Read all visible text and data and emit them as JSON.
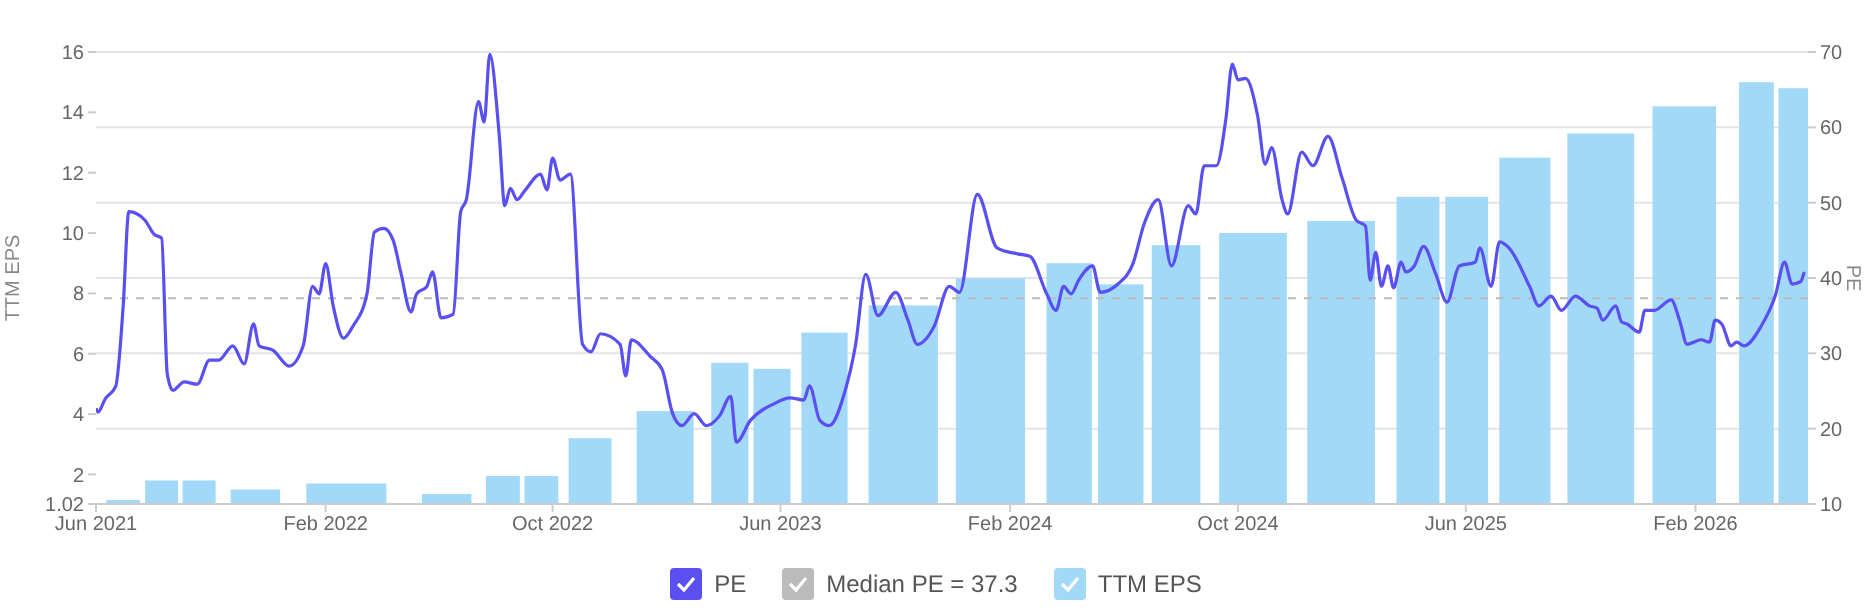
{
  "chart_data": {
    "type": "bar",
    "ylabel": "TTM EPS",
    "y2label": "PE",
    "legend": "bottom",
    "grid": "y",
    "marker": "none",
    "xlim": [
      "2021-06-01",
      "2026-06-01"
    ],
    "xticks": [
      {
        "value": "2021-06-01",
        "label": "Jun 2021"
      },
      {
        "value": "2022-02-01",
        "label": "Feb 2022"
      },
      {
        "value": "2022-10-01",
        "label": "Oct 2022"
      },
      {
        "value": "2023-06-01",
        "label": "Jun 2023"
      },
      {
        "value": "2024-02-01",
        "label": "Feb 2024"
      },
      {
        "value": "2024-10-01",
        "label": "Oct 2024"
      },
      {
        "value": "2025-06-01",
        "label": "Jun 2025"
      },
      {
        "value": "2026-02-01",
        "label": "Feb 2026"
      }
    ],
    "ylim": [
      1.02,
      16
    ],
    "yticks": [
      1.02,
      2,
      4,
      6,
      8,
      10,
      12,
      14,
      16
    ],
    "y2lim": [
      10,
      70
    ],
    "y2ticks": [
      10,
      20,
      30,
      40,
      50,
      60,
      70
    ],
    "ref_lines": [
      {
        "axis": "y2",
        "value": 37.3,
        "label": "Median PE = 37.3",
        "color": "#bbbbbb",
        "line_style": "dashed"
      }
    ],
    "x": [
      "2021-06-30",
      "2021-08-10",
      "2021-09-19",
      "2021-11-18",
      "2022-02-23",
      "2022-06-10",
      "2022-08-09",
      "2022-09-19",
      "2022-11-10",
      "2023-01-29",
      "2023-04-08",
      "2023-05-23",
      "2023-07-18",
      "2023-10-10",
      "2024-01-11",
      "2024-04-04",
      "2024-05-29",
      "2024-07-27",
      "2024-10-17",
      "2025-01-19",
      "2025-04-11",
      "2025-06-02",
      "2025-08-03",
      "2025-10-23",
      "2026-01-20",
      "2026-04-07",
      "2026-05-19"
    ],
    "series": [
      {
        "name": "PE",
        "type": "line",
        "axis": "y2",
        "color": "#5a4ff0",
        "line_style": "solid",
        "x": [
          "2021-06-01",
          "2021-06-03",
          "2021-06-11",
          "2021-06-22",
          "2021-06-30",
          "2021-07-06",
          "2021-07-23",
          "2021-08-02",
          "2021-08-10",
          "2021-08-16",
          "2021-08-22",
          "2021-09-03",
          "2021-09-17",
          "2021-09-30",
          "2021-10-10",
          "2021-10-25",
          "2021-11-06",
          "2021-11-16",
          "2021-11-22",
          "2021-12-07",
          "2021-12-24",
          "2022-01-08",
          "2022-01-18",
          "2022-01-25",
          "2022-02-01",
          "2022-02-09",
          "2022-02-20",
          "2022-03-02",
          "2022-03-17",
          "2022-03-25",
          "2022-04-04",
          "2022-04-14",
          "2022-04-22",
          "2022-05-03",
          "2022-05-09",
          "2022-05-20",
          "2022-05-26",
          "2022-06-04",
          "2022-06-17",
          "2022-06-25",
          "2022-07-01",
          "2022-07-14",
          "2022-07-20",
          "2022-07-26",
          "2022-08-05",
          "2022-08-11",
          "2022-08-17",
          "2022-08-24",
          "2022-09-02",
          "2022-09-18",
          "2022-09-25",
          "2022-10-01",
          "2022-10-09",
          "2022-10-20",
          "2022-11-02",
          "2022-11-11",
          "2022-11-21",
          "2022-12-12",
          "2022-12-18",
          "2022-12-24",
          "2023-01-13",
          "2023-01-26",
          "2023-02-06",
          "2023-02-16",
          "2023-03-01",
          "2023-03-14",
          "2023-03-28",
          "2023-04-09",
          "2023-04-15",
          "2023-04-30",
          "2023-05-25",
          "2023-06-11",
          "2023-06-26",
          "2023-07-02",
          "2023-07-13",
          "2023-07-23",
          "2023-08-08",
          "2023-08-20",
          "2023-08-31",
          "2023-09-13",
          "2023-10-02",
          "2023-10-15",
          "2023-10-25",
          "2023-11-12",
          "2023-11-28",
          "2023-12-09",
          "2023-12-28",
          "2024-01-18",
          "2024-02-09",
          "2024-02-22",
          "2024-03-11",
          "2024-03-21",
          "2024-03-29",
          "2024-04-06",
          "2024-04-14",
          "2024-04-29",
          "2024-05-07",
          "2024-05-26",
          "2024-06-11",
          "2024-06-23",
          "2024-07-08",
          "2024-07-22",
          "2024-08-09",
          "2024-08-17",
          "2024-08-26",
          "2024-09-08",
          "2024-09-18",
          "2024-09-25",
          "2024-10-01",
          "2024-10-09",
          "2024-10-22",
          "2024-10-30",
          "2024-11-06",
          "2024-11-17",
          "2024-11-23",
          "2024-12-08",
          "2024-12-20",
          "2025-01-05",
          "2025-01-20",
          "2025-02-04",
          "2025-02-14",
          "2025-02-19",
          "2025-02-25",
          "2025-03-03",
          "2025-03-10",
          "2025-03-16",
          "2025-03-24",
          "2025-03-29",
          "2025-04-07",
          "2025-04-17",
          "2025-04-30",
          "2025-05-12",
          "2025-05-25",
          "2025-06-11",
          "2025-06-16",
          "2025-06-28",
          "2025-07-07",
          "2025-07-17",
          "2025-08-08",
          "2025-08-18",
          "2025-08-31",
          "2025-09-11",
          "2025-09-26",
          "2025-10-11",
          "2025-10-19",
          "2025-10-25",
          "2025-11-08",
          "2025-11-14",
          "2025-11-20",
          "2025-12-03",
          "2025-12-09",
          "2025-12-19",
          "2026-01-06",
          "2026-01-15",
          "2026-01-23",
          "2026-02-07",
          "2026-02-16",
          "2026-02-22",
          "2026-03-01",
          "2026-03-11",
          "2026-03-17",
          "2026-03-25",
          "2026-04-12",
          "2026-04-27",
          "2026-05-07",
          "2026-05-15",
          "2026-05-24",
          "2026-05-28"
        ],
        "values": [
          22.7,
          22.2,
          24,
          25.6,
          36.3,
          48.8,
          47.7,
          45.8,
          45.3,
          27.3,
          25.1,
          26.2,
          25.9,
          29.1,
          29.1,
          31,
          28.6,
          33.9,
          31,
          30.4,
          28.3,
          31,
          38.9,
          37.9,
          41.9,
          36.3,
          32,
          33.6,
          37.9,
          46.1,
          46.6,
          45,
          40.8,
          35.5,
          37.9,
          38.9,
          40.8,
          34.7,
          35.2,
          48.8,
          50.4,
          63.4,
          60.7,
          69.7,
          59.1,
          49.6,
          51.9,
          50.4,
          51.7,
          53.8,
          51.7,
          55.9,
          53,
          53.8,
          31.2,
          30.2,
          32.6,
          31.2,
          27,
          31.8,
          29.6,
          27.8,
          22,
          20.4,
          22,
          20.4,
          21.7,
          24.3,
          18.2,
          21.1,
          23.3,
          24.1,
          23.8,
          25.7,
          21.1,
          20.4,
          24.6,
          31,
          40.5,
          35,
          38.1,
          34.4,
          31.2,
          33.6,
          38.9,
          38.1,
          51.1,
          44,
          43.2,
          42.9,
          37.9,
          35.7,
          38.9,
          37.9,
          39.7,
          41.6,
          38.1,
          39.2,
          41.9,
          47.2,
          50.4,
          41.6,
          49.6,
          48.5,
          54.9,
          54.9,
          61,
          68.4,
          66.3,
          66.5,
          61.5,
          55.1,
          57.3,
          50.4,
          48.5,
          56.7,
          54.9,
          58.8,
          53.3,
          47.7,
          46.9,
          39.7,
          43.4,
          38.9,
          41.6,
          38.7,
          42.1,
          40.8,
          41.6,
          44.2,
          40.5,
          36.8,
          41.6,
          42.1,
          44,
          38.9,
          44.8,
          44,
          38.9,
          36.3,
          37.6,
          35.7,
          37.6,
          36.3,
          36,
          34.4,
          36.3,
          34.2,
          33.9,
          32.8,
          35.7,
          35.7,
          37.1,
          34.4,
          31.2,
          31.8,
          31.5,
          34.4,
          33.9,
          31,
          31.5,
          31,
          33.6,
          37.6,
          42.1,
          39.2,
          39.5,
          40.8
        ]
      },
      {
        "name": "TTM EPS",
        "color": "#a3d9f8",
        "values": [
          1.15,
          1.8,
          1.8,
          1.5,
          1.7,
          1.35,
          1.95,
          1.95,
          3.2,
          4.1,
          5.7,
          5.5,
          6.7,
          7.6,
          8.5,
          9,
          8.3,
          9.6,
          10,
          10.4,
          11.2,
          11.2,
          12.5,
          13.3,
          14.2,
          15,
          14.8
        ]
      }
    ]
  }
}
